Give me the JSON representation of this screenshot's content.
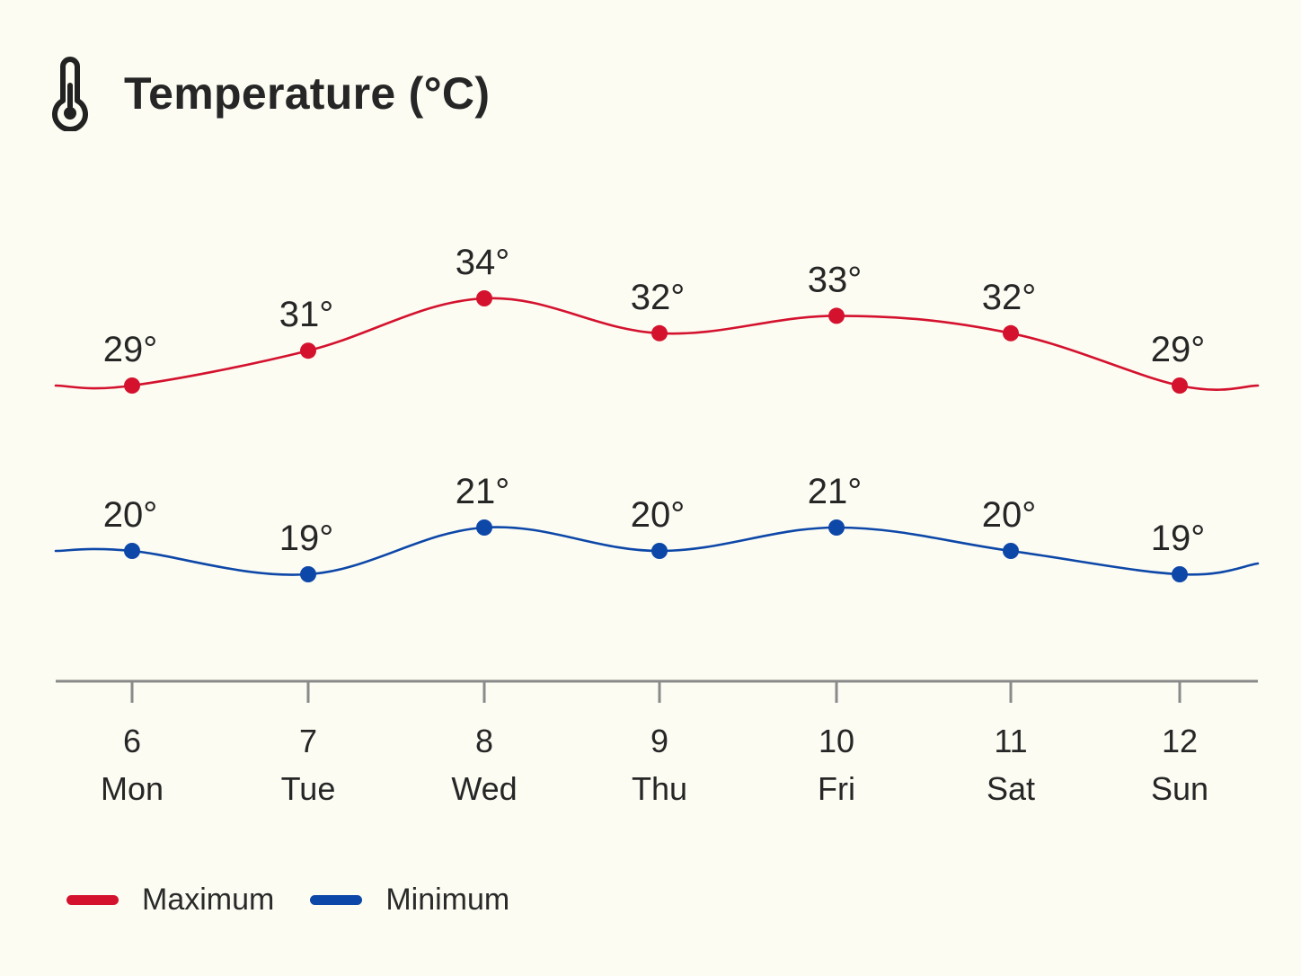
{
  "header": {
    "title": "Temperature (°C)",
    "icon": "thermometer-icon"
  },
  "chart_data": {
    "type": "line",
    "title": "Temperature (°C)",
    "xlabel": "",
    "ylabel": "",
    "x": [
      {
        "date": "6",
        "day": "Mon"
      },
      {
        "date": "7",
        "day": "Tue"
      },
      {
        "date": "8",
        "day": "Wed"
      },
      {
        "date": "9",
        "day": "Thu"
      },
      {
        "date": "10",
        "day": "Fri"
      },
      {
        "date": "11",
        "day": "Sat"
      },
      {
        "date": "12",
        "day": "Sun"
      }
    ],
    "series": [
      {
        "name": "Maximum",
        "color": "#d4122e",
        "values": [
          29,
          31,
          34,
          32,
          33,
          32,
          29
        ],
        "labels": [
          "29°",
          "31°",
          "34°",
          "32°",
          "33°",
          "32°",
          "29°"
        ]
      },
      {
        "name": "Minimum",
        "color": "#0d47a8",
        "values": [
          20,
          19,
          21,
          20,
          21,
          20,
          19
        ],
        "labels": [
          "20°",
          "19°",
          "21°",
          "20°",
          "21°",
          "20°",
          "19°"
        ]
      }
    ],
    "grid": false,
    "legend": "bottom-left"
  },
  "legend": {
    "items": [
      {
        "label": "Maximum",
        "color": "#d4122e"
      },
      {
        "label": "Minimum",
        "color": "#0d47a8"
      }
    ]
  },
  "axis_color": "#8a8a8a"
}
